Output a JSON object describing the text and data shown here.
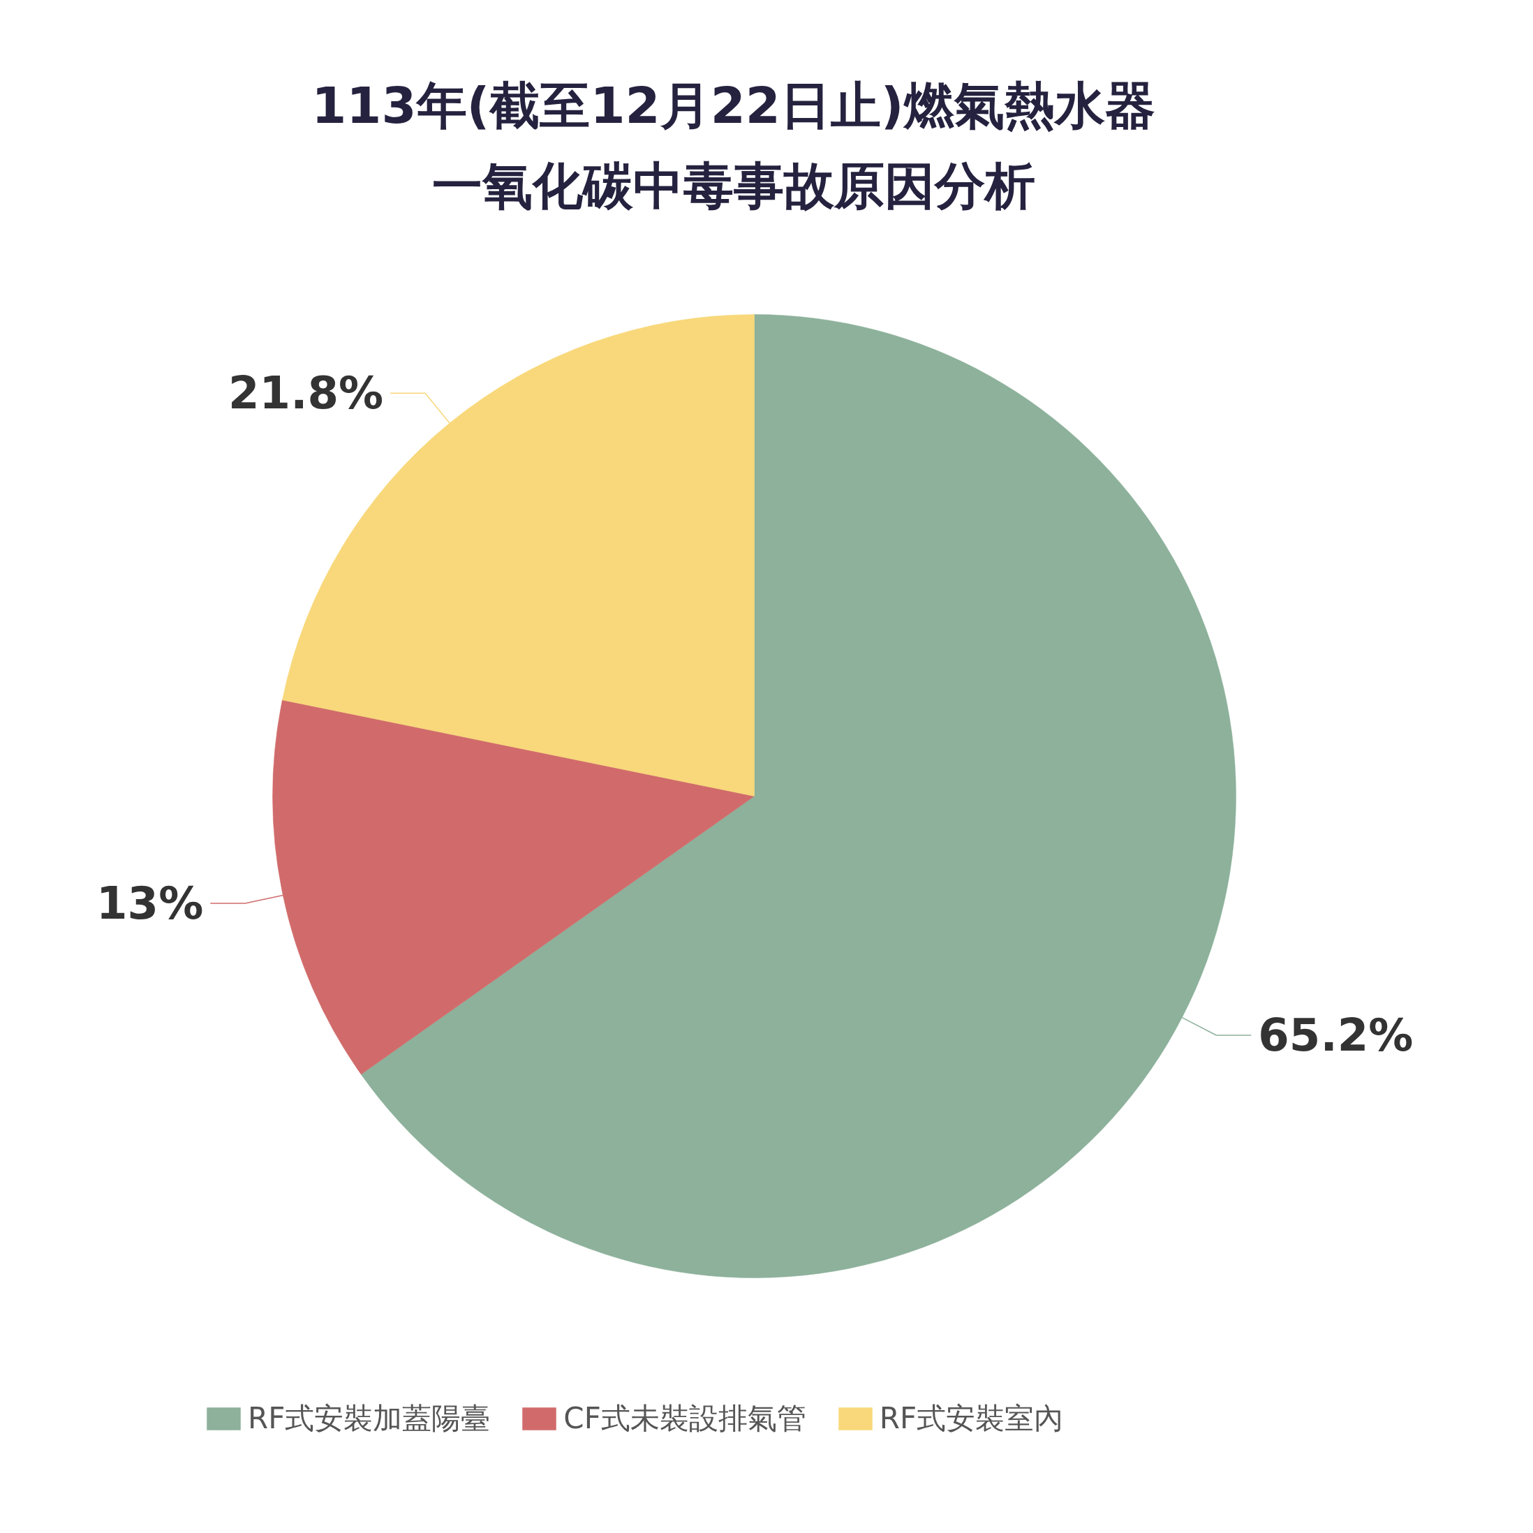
{
  "chart_data": {
    "type": "pie",
    "title": "113年(截至12月22日止)燃氣熱水器",
    "subtitle": "一氧化碳中毒事故原因分析",
    "categories": [
      "RF式安裝加蓋陽臺",
      "CF式未裝設排氣管",
      "RF式安裝室內"
    ],
    "values": [
      65.2,
      13,
      21.8
    ],
    "colors": [
      "#8db19b",
      "#d16b6b",
      "#f8d87a"
    ],
    "value_labels": [
      "65.2%",
      "13%",
      "21.8%"
    ],
    "legend": "bottom"
  }
}
